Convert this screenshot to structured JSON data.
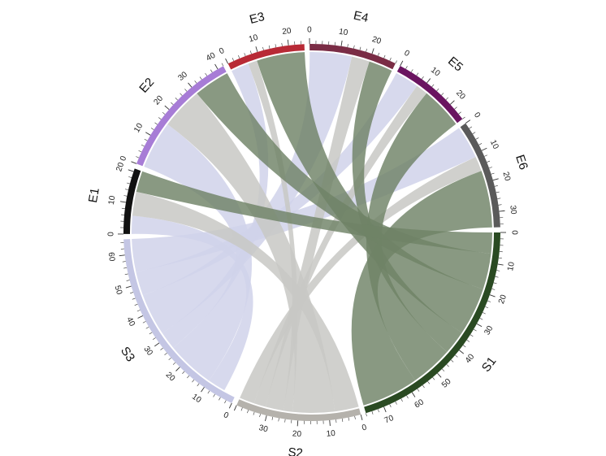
{
  "chart_data": {
    "type": "chord",
    "colors": {
      "ribbon_green": "#6f8366",
      "ribbon_lavender": "#d0d2ea",
      "ribbon_gray": "#c8c8c4",
      "separator": "#ffffff"
    },
    "sectors": [
      {
        "name": "S1",
        "total": 76,
        "color": "#2a4a22",
        "ticks": [
          0,
          10,
          20,
          30,
          40,
          50,
          60,
          70
        ]
      },
      {
        "name": "S2",
        "total": 40,
        "color": "#b5b2ac",
        "ticks": [
          0,
          10,
          20,
          30
        ]
      },
      {
        "name": "S3",
        "total": 65,
        "color": "#c4c6e4",
        "ticks": [
          0,
          10,
          20,
          30,
          40,
          50,
          60
        ]
      },
      {
        "name": "E1",
        "total": 21,
        "color": "#111111",
        "ticks": [
          0,
          10,
          20
        ]
      },
      {
        "name": "E2",
        "total": 42,
        "color": "#a77cd6",
        "ticks": [
          0,
          10,
          20,
          30,
          40
        ]
      },
      {
        "name": "E3",
        "total": 25,
        "color": "#b82a36",
        "ticks": [
          0,
          10,
          20
        ]
      },
      {
        "name": "E4",
        "total": 28,
        "color": "#7a2c45",
        "ticks": [
          0,
          10,
          20
        ]
      },
      {
        "name": "E5",
        "total": 26,
        "color": "#6a1460",
        "ticks": [
          0,
          10,
          20
        ]
      },
      {
        "name": "E6",
        "total": 35,
        "color": "#5a5a5a",
        "ticks": [
          0,
          10,
          20,
          30
        ]
      }
    ],
    "links": [
      {
        "from": "S1",
        "to": "E6",
        "value": 19,
        "color": "green"
      },
      {
        "from": "S1",
        "to": "E5",
        "value": 14,
        "color": "green"
      },
      {
        "from": "S1",
        "to": "E4",
        "value": 8,
        "color": "green"
      },
      {
        "from": "S1",
        "to": "E3",
        "value": 16,
        "color": "green"
      },
      {
        "from": "S1",
        "to": "E2",
        "value": 12,
        "color": "green"
      },
      {
        "from": "S1",
        "to": "E1",
        "value": 7,
        "color": "green"
      },
      {
        "from": "S2",
        "to": "E6",
        "value": 5,
        "color": "gray"
      },
      {
        "from": "S2",
        "to": "E5",
        "value": 4,
        "color": "gray"
      },
      {
        "from": "S2",
        "to": "E4",
        "value": 6,
        "color": "gray"
      },
      {
        "from": "S2",
        "to": "E3",
        "value": 3,
        "color": "gray"
      },
      {
        "from": "S2",
        "to": "E2",
        "value": 14,
        "color": "gray"
      },
      {
        "from": "S2",
        "to": "E1",
        "value": 8,
        "color": "gray"
      },
      {
        "from": "S3",
        "to": "E6",
        "value": 11,
        "color": "lavender"
      },
      {
        "from": "S3",
        "to": "E5",
        "value": 8,
        "color": "lavender"
      },
      {
        "from": "S3",
        "to": "E4",
        "value": 14,
        "color": "lavender"
      },
      {
        "from": "S3",
        "to": "E3",
        "value": 6,
        "color": "lavender"
      },
      {
        "from": "S3",
        "to": "E2",
        "value": 16,
        "color": "lavender"
      },
      {
        "from": "S3",
        "to": "E1",
        "value": 6,
        "color": "lavender"
      }
    ]
  }
}
